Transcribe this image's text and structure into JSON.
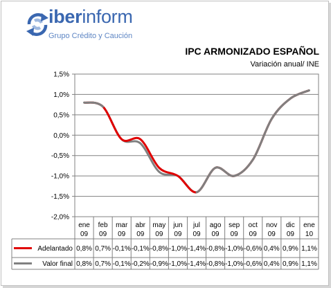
{
  "brand": {
    "name_bold": "iber",
    "name_light": "inform",
    "tagline": "Grupo Crédito y Caución",
    "color": "#3a67b0"
  },
  "chart_data": {
    "type": "line",
    "title": "IPC ARMONIZADO ESPAÑOL",
    "subtitle": "Variación anual/ INE",
    "categories": [
      [
        "ene",
        "09"
      ],
      [
        "feb",
        "09"
      ],
      [
        "mar",
        "09"
      ],
      [
        "abr",
        "09"
      ],
      [
        "may",
        "09"
      ],
      [
        "jun",
        "09"
      ],
      [
        "jul",
        "09"
      ],
      [
        "ago",
        "09"
      ],
      [
        "sep",
        "09"
      ],
      [
        "oct",
        "09"
      ],
      [
        "nov",
        "09"
      ],
      [
        "dic",
        "09"
      ],
      [
        "ene",
        "10"
      ]
    ],
    "ylim": [
      -2.0,
      1.5
    ],
    "yticks": [
      1.5,
      1.0,
      0.5,
      0.0,
      -0.5,
      -1.0,
      -1.5,
      -2.0
    ],
    "ytick_labels": [
      "1,5%",
      "1,0%",
      "0,5%",
      "0,0%",
      "-0,5%",
      "-1,0%",
      "-1,5%",
      "-2,0%"
    ],
    "grid": true,
    "legend": "data-table-below",
    "series": [
      {
        "name": "Adelantado",
        "color": "#e00000",
        "values": [
          0.8,
          0.7,
          -0.1,
          -0.1,
          -0.8,
          -1.0,
          -1.4,
          -0.8,
          -1.0,
          -0.6,
          0.4,
          0.9,
          1.1
        ],
        "labels": [
          "0,8%",
          "0,7%",
          "-0,1%",
          "-0,1%",
          "-0,8%",
          "-1,0%",
          "-1,4%",
          "-0,8%",
          "-1,0%",
          "-0,6%",
          "0,4%",
          "0,9%",
          "1,1%"
        ]
      },
      {
        "name": "Valor final",
        "color": "#808080",
        "values": [
          0.8,
          0.7,
          -0.1,
          -0.2,
          -0.9,
          -1.0,
          -1.4,
          -0.8,
          -1.0,
          -0.6,
          0.4,
          0.9,
          1.1
        ],
        "labels": [
          "0,8%",
          "0,7%",
          "-0,1%",
          "-0,2%",
          "-0,9%",
          "-1,0%",
          "-1,4%",
          "-0,8%",
          "-1,0%",
          "-0,6%",
          "0,4%",
          "0,9%",
          "1,1%"
        ]
      }
    ]
  }
}
